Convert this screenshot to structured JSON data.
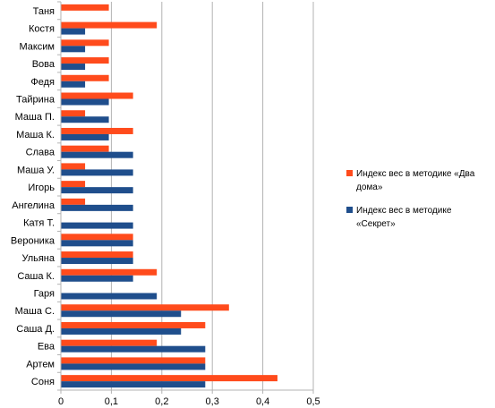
{
  "chart_data": {
    "type": "bar",
    "orientation": "horizontal",
    "categories": [
      "Таня",
      "Костя",
      "Максим",
      "Вова",
      "Федя",
      "Тайрина",
      "Маша П.",
      "Маша К.",
      "Слава",
      "Маша У.",
      "Игорь",
      "Ангелина",
      "Катя Т.",
      "Вероника",
      "Ульяна",
      "Саша К.",
      "Гаря",
      "Маша С.",
      "Саша Д.",
      "Ева",
      "Артем",
      "Соня"
    ],
    "series": [
      {
        "name": "Индекс вес в методике «Два дома»",
        "color": "#ff4b1c",
        "values": [
          0.095,
          0.19,
          0.095,
          0.095,
          0.095,
          0.143,
          0.048,
          0.143,
          0.095,
          0.048,
          0.048,
          0.048,
          0,
          0.143,
          0.143,
          0.19,
          0,
          0.333,
          0.286,
          0.19,
          0.286,
          0.429
        ]
      },
      {
        "name": "Индекс вес в методике «Секрет»",
        "color": "#1f4e8c",
        "values": [
          0,
          0.048,
          0.048,
          0.048,
          0.048,
          0.095,
          0.095,
          0.095,
          0.143,
          0.143,
          0.143,
          0.143,
          0.143,
          0.143,
          0.143,
          0.143,
          0.19,
          0.238,
          0.238,
          0.286,
          0.286,
          0.286
        ]
      }
    ],
    "xlim": [
      0,
      0.5
    ],
    "xticks": [
      "0",
      "0,1",
      "0,2",
      "0,3",
      "0,4",
      "0,5"
    ],
    "grid": "vertical",
    "legend_position": "right",
    "legend": [
      {
        "line1": "Индекс вес в методике «Два",
        "line2": "дома»"
      },
      {
        "line1": "Индекс вес в методике",
        "line2": "«Секрет»"
      }
    ]
  }
}
